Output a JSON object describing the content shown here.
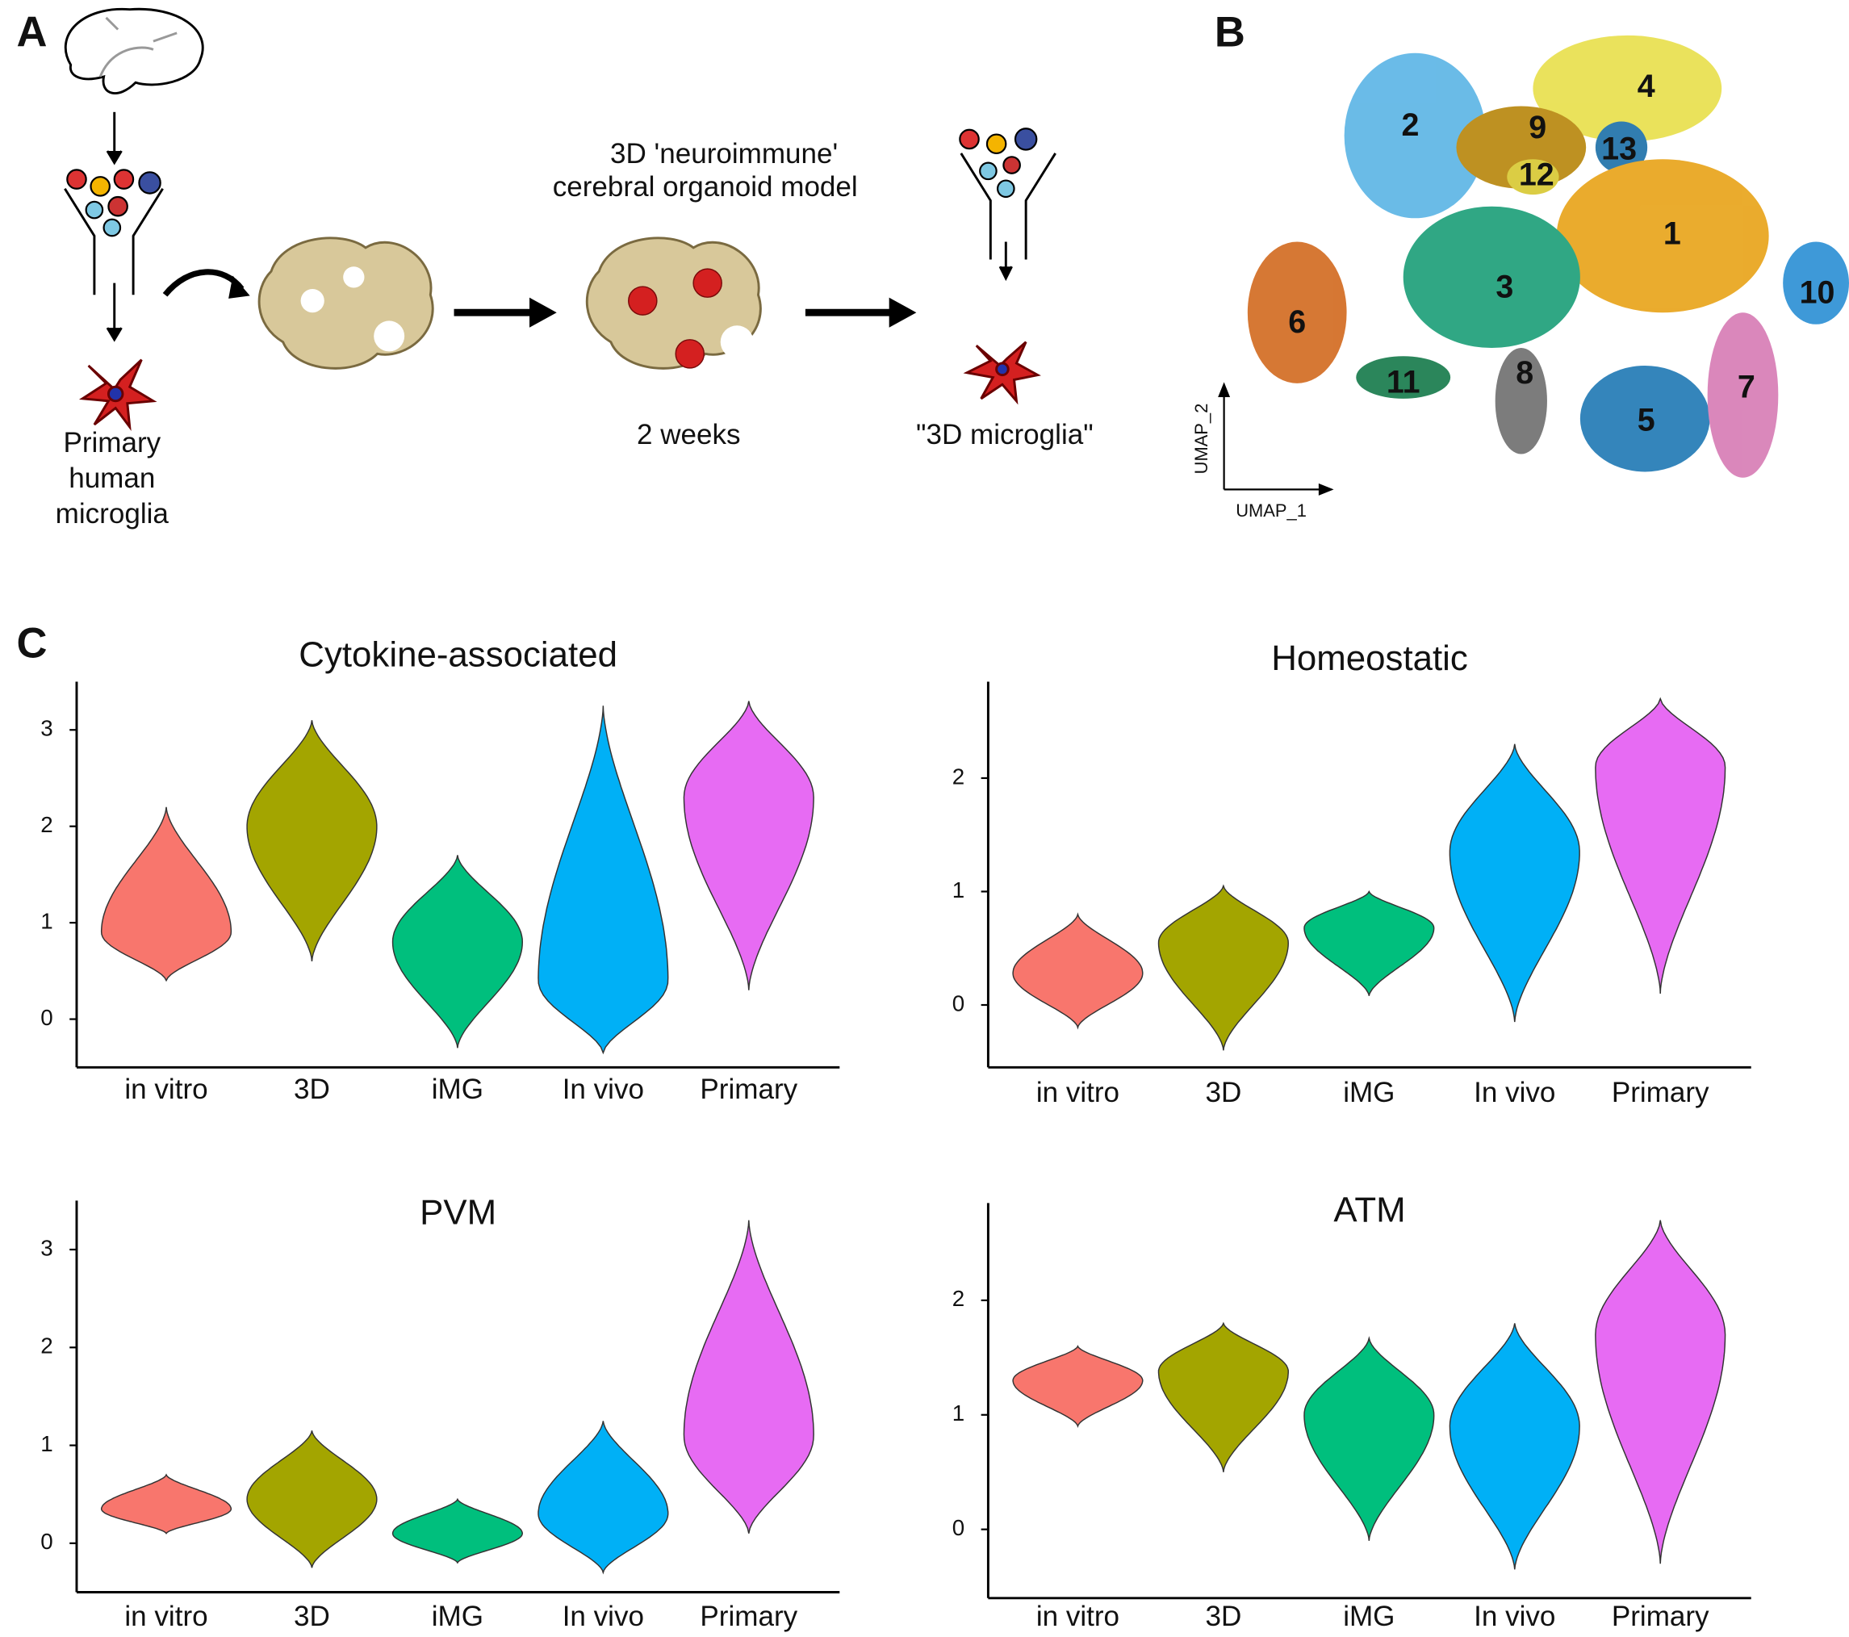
{
  "panel_a": {
    "label": "A",
    "organoid_title": [
      "3D 'neuroimmune'",
      "cerebral organoid model"
    ],
    "primary_label": [
      "Primary",
      "human",
      "microglia"
    ],
    "time_label": "2 weeks",
    "result_label": "\"3D microglia\""
  },
  "panel_b": {
    "label": "B",
    "clusters": [
      "1",
      "2",
      "3",
      "4",
      "5",
      "6",
      "7",
      "8",
      "9",
      "10",
      "11",
      "12",
      "13"
    ],
    "x_axis": "UMAP_1",
    "y_axis": "UMAP_2"
  },
  "panel_c": {
    "label": "C"
  },
  "chart_data": [
    {
      "type": "violin",
      "title": "Cytokine-associated",
      "categories": [
        "in vitro",
        "3D",
        "iMG",
        "In vivo",
        "Primary"
      ],
      "colors": [
        "#f8766d",
        "#a3a500",
        "#00bf7d",
        "#00b0f6",
        "#e76bf3"
      ],
      "min": [
        0.4,
        0.6,
        -0.3,
        -0.35,
        0.3
      ],
      "max": [
        2.2,
        3.1,
        1.7,
        3.25,
        3.3
      ],
      "mode": [
        0.9,
        2.0,
        0.8,
        0.4,
        2.3
      ],
      "ylim": [
        -0.5,
        3.5
      ],
      "yticks": [
        0,
        1,
        2,
        3
      ]
    },
    {
      "type": "violin",
      "title": "Homeostatic",
      "categories": [
        "in vitro",
        "3D",
        "iMG",
        "In vivo",
        "Primary"
      ],
      "colors": [
        "#f8766d",
        "#a3a500",
        "#00bf7d",
        "#00b0f6",
        "#e76bf3"
      ],
      "min": [
        -0.2,
        -0.4,
        0.08,
        -0.15,
        0.1
      ],
      "max": [
        0.8,
        1.05,
        1.0,
        2.3,
        2.7
      ],
      "mode": [
        0.28,
        0.55,
        0.68,
        1.35,
        2.1
      ],
      "ylim": [
        -0.55,
        2.85
      ],
      "yticks": [
        0,
        1,
        2
      ]
    },
    {
      "type": "violin",
      "title": "PVM",
      "categories": [
        "in vitro",
        "3D",
        "iMG",
        "In vivo",
        "Primary"
      ],
      "colors": [
        "#f8766d",
        "#a3a500",
        "#00bf7d",
        "#00b0f6",
        "#e76bf3"
      ],
      "min": [
        0.1,
        -0.25,
        -0.2,
        -0.3,
        0.1
      ],
      "max": [
        0.7,
        1.15,
        0.45,
        1.25,
        3.3
      ],
      "mode": [
        0.35,
        0.45,
        0.1,
        0.3,
        1.1
      ],
      "ylim": [
        -0.5,
        3.5
      ],
      "yticks": [
        0,
        1,
        2,
        3
      ]
    },
    {
      "type": "violin",
      "title": "ATM",
      "categories": [
        "in vitro",
        "3D",
        "iMG",
        "In vivo",
        "Primary"
      ],
      "colors": [
        "#f8766d",
        "#a3a500",
        "#00bf7d",
        "#00b0f6",
        "#e76bf3"
      ],
      "min": [
        0.9,
        0.5,
        -0.1,
        -0.35,
        -0.3
      ],
      "max": [
        1.6,
        1.8,
        1.67,
        1.8,
        2.7
      ],
      "mode": [
        1.3,
        1.38,
        1.0,
        0.9,
        1.7
      ],
      "ylim": [
        -0.6,
        2.85
      ],
      "yticks": [
        0,
        1,
        2
      ]
    }
  ]
}
